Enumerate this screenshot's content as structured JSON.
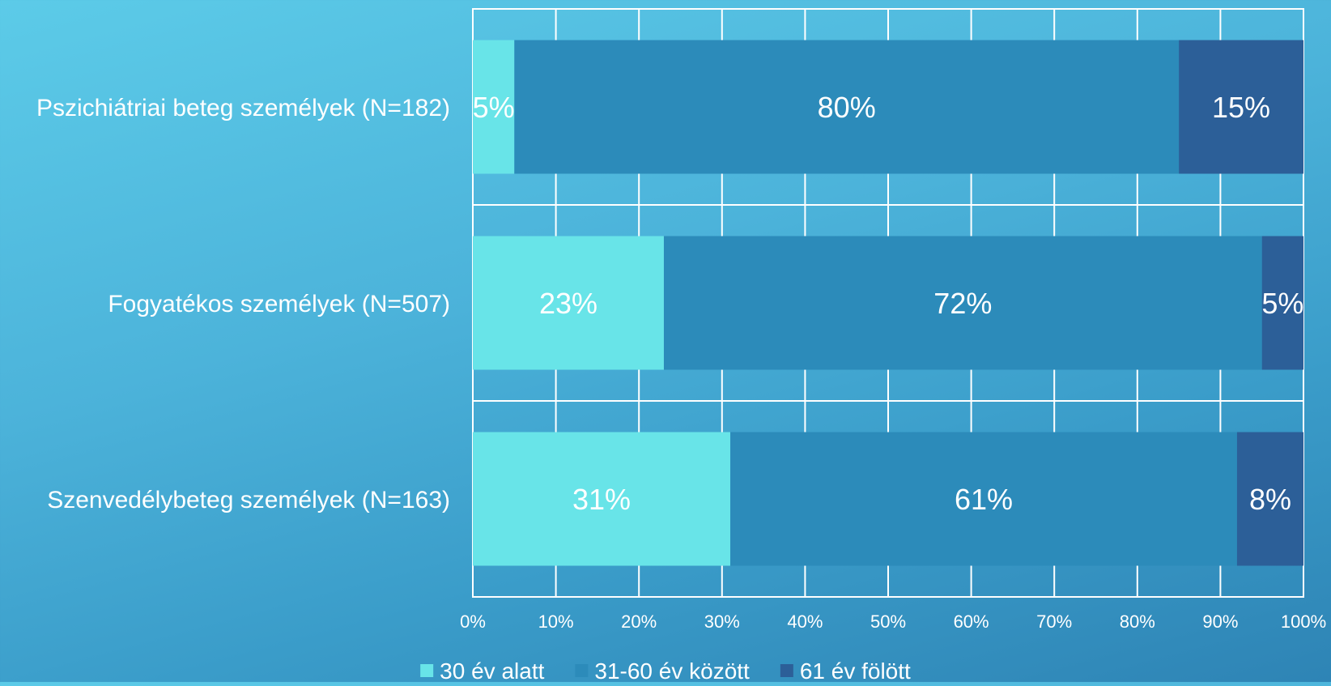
{
  "chart_data": {
    "type": "bar",
    "orientation": "horizontal",
    "stacked": "100%",
    "categories": [
      "Pszichiátriai beteg személyek (N=182)",
      "Fogyatékos személyek (N=507)",
      "Szenvedélybeteg személyek  (N=163)"
    ],
    "series": [
      {
        "name": "30 év alatt",
        "values": [
          5,
          23,
          31
        ],
        "color": "#68e4e8"
      },
      {
        "name": "31-60 év között",
        "values": [
          80,
          72,
          61
        ],
        "color": "#2c8bba"
      },
      {
        "name": "61 év fölött",
        "values": [
          15,
          5,
          8
        ],
        "color": "#2c5f98"
      }
    ],
    "data_labels": [
      [
        "5%",
        "80%",
        "15%"
      ],
      [
        "23%",
        "72%",
        "5%"
      ],
      [
        "31%",
        "61%",
        "8%"
      ]
    ],
    "xlim": [
      0,
      100
    ],
    "x_ticks": [
      "0%",
      "10%",
      "20%",
      "30%",
      "40%",
      "50%",
      "60%",
      "70%",
      "80%",
      "90%",
      "100%"
    ],
    "grid": true,
    "legend_position": "bottom",
    "title": "",
    "xlabel": "",
    "ylabel": ""
  }
}
